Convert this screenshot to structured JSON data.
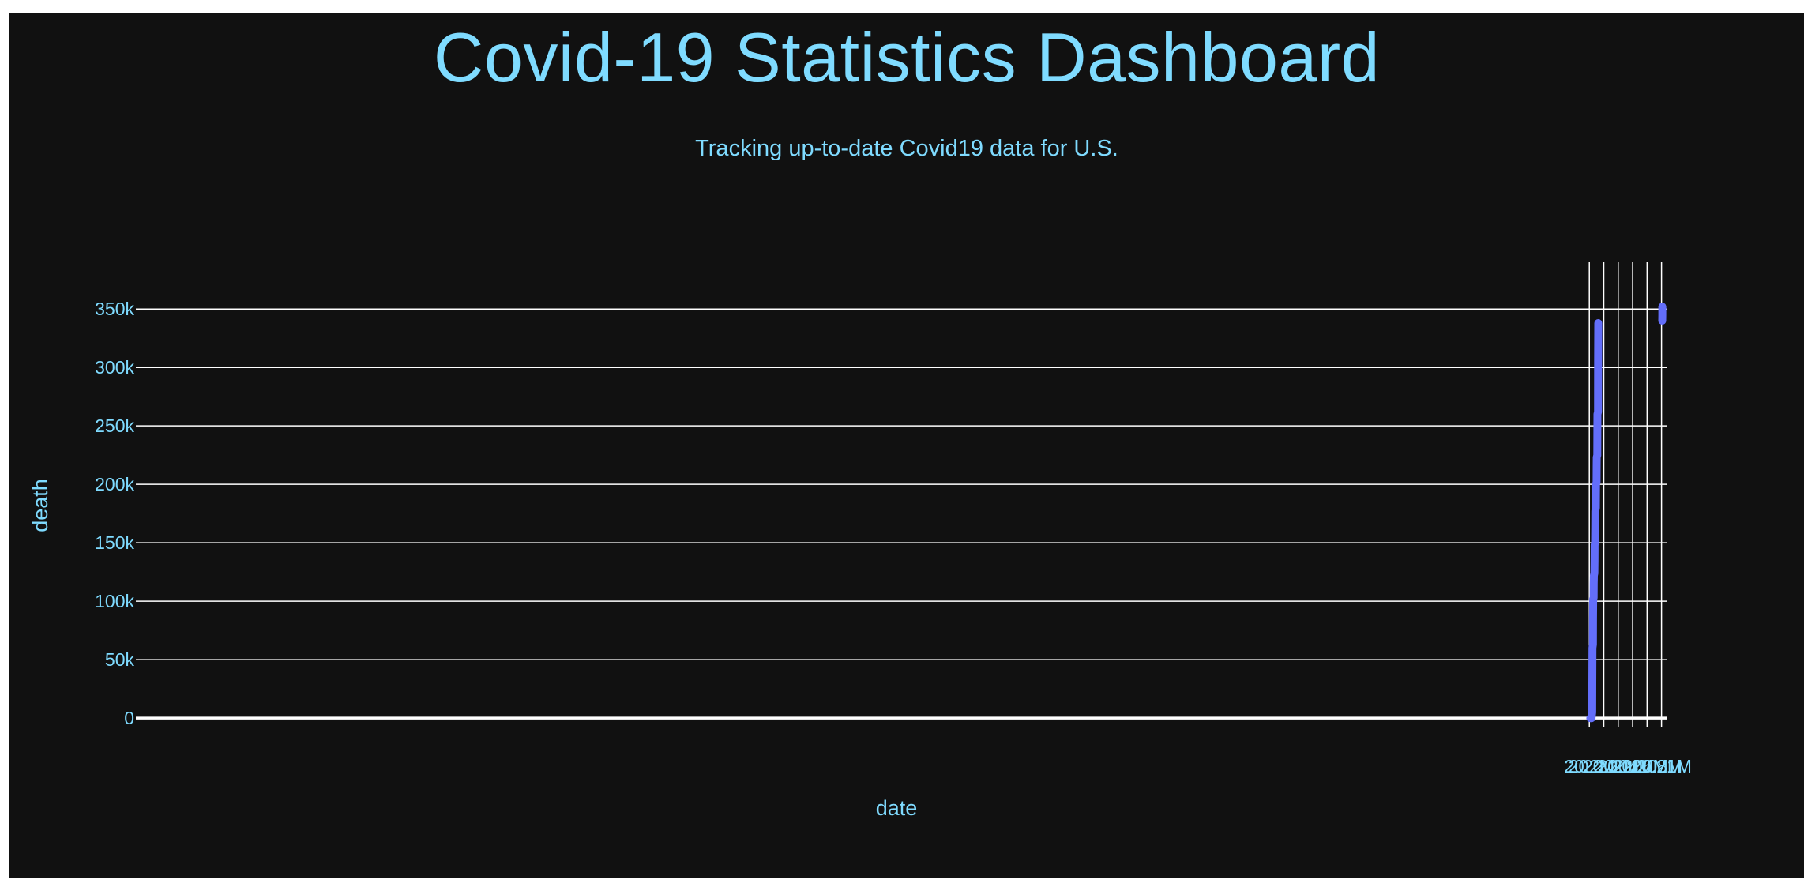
{
  "header": {
    "title": "Covid-19 Statistics Dashboard",
    "subtitle": "Tracking up-to-date Covid19 data for U.S."
  },
  "colors": {
    "background": "#111111",
    "text": "#7fdbff",
    "grid": "#ffffff",
    "series": "#636efa"
  },
  "chart_data": {
    "type": "line",
    "xlabel": "date",
    "ylabel": "death",
    "xlim": [
      19999500,
      20210700
    ],
    "ylim": [
      -8000,
      390000
    ],
    "x_ticks": [
      20200000,
      20202000,
      20204000,
      20206000,
      20208000,
      20210000
    ],
    "x_tick_labels": [
      "20.2M",
      "20.202M",
      "20.204M",
      "20.206M",
      "20.208M",
      "20.21M"
    ],
    "y_ticks": [
      0,
      50000,
      100000,
      150000,
      200000,
      250000,
      300000,
      350000
    ],
    "y_tick_labels": [
      "0",
      "50k",
      "100k",
      "150k",
      "200k",
      "250k",
      "300k",
      "350k"
    ],
    "grid": true,
    "series": [
      {
        "x": [
          20200129,
          20200131,
          20200201,
          20200215,
          20200229,
          20200301,
          20200315,
          20200331,
          20200401,
          20200415,
          20200430,
          20200501,
          20200515,
          20200531,
          20200601,
          20200615,
          20200630,
          20200701,
          20200715,
          20200731,
          20200801,
          20200815,
          20200831,
          20200901,
          20200915,
          20200930,
          20200931,
          20201001,
          20201015,
          20201031,
          20201101,
          20201115,
          20201130,
          20201201,
          20201215,
          20201231
        ],
        "values": [
          0,
          0,
          0,
          0,
          0,
          0,
          0,
          1000,
          5000,
          30000,
          60000,
          63000,
          85000,
          102000,
          103000,
          115000,
          122000,
          124000,
          135000,
          148000,
          150000,
          165000,
          177000,
          180000,
          192000,
          200000,
          200000,
          202000,
          215000,
          223000,
          225000,
          245000,
          260000,
          262000,
          305000,
          338000
        ]
      },
      {
        "x": [
          20210101,
          20210105,
          20210110
        ],
        "values": [
          340000,
          345000,
          352000
        ]
      }
    ]
  }
}
